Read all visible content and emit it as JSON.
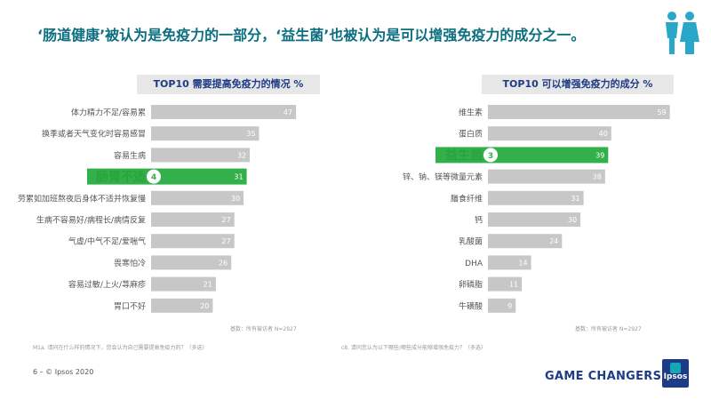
{
  "headline": "‘肠道健康’被认为是免疫力的一部分，‘益生菌’也被认为是可以增强免疫力的成分之一。",
  "colors": {
    "bar": "#c7c7c7",
    "highlight": "#34b04a",
    "highlight_label": "#2aa33c",
    "title": "#1d3b86",
    "headline": "#0b6f80"
  },
  "left_chart": {
    "title": "TOP10 需要提高免疫力的情况 %",
    "base_note": "基数：所有被访者 N=2927",
    "footnote": "M1a. 请问在什么样的情况下，您会认为自己需要提高免疫力的？（多选）"
  },
  "right_chart": {
    "title": "TOP10 可以增强免疫力的成分 %",
    "base_note": "基数：所有被访者 N=2927",
    "footnote": "c8. 请问您认为以下哪些/哪些成分能够增强免疫力？（多选）"
  },
  "footer": {
    "page": "6 –  © Ipsos 2020",
    "brand": "GAME CHANGERS",
    "logo": "Ipsos"
  },
  "chart_data": [
    {
      "type": "bar",
      "orientation": "horizontal",
      "title": "TOP10 需要提高免疫力的情况 %",
      "categories": [
        "体力精力不足/容易累",
        "换季或者天气变化时容易感冒",
        "容易生病",
        "肠胃不适",
        "劳累如加班熬夜后身体不适并恢复慢",
        "生病不容易好/病程长/病情反复",
        "气虚/中气不足/爱喘气",
        "畏寒怕冷",
        "容易过敏/上火/荨麻疹",
        "胃口不好"
      ],
      "values": [
        47,
        35,
        32,
        31,
        30,
        27,
        27,
        26,
        21,
        20
      ],
      "highlight": {
        "index": 3,
        "rank": "4"
      }
    },
    {
      "type": "bar",
      "orientation": "horizontal",
      "title": "TOP10 可以增强免疫力的成分 %",
      "categories": [
        "维生素",
        "蛋白质",
        "益生菌",
        "锌、钠、镁等微量元素",
        "膳食纤维",
        "钙",
        "乳酸菌",
        "DHA",
        "卵磷脂",
        "牛磺酸"
      ],
      "values": [
        59,
        40,
        39,
        38,
        31,
        30,
        24,
        14,
        11,
        9
      ],
      "highlight": {
        "index": 2,
        "rank": "3"
      }
    }
  ]
}
